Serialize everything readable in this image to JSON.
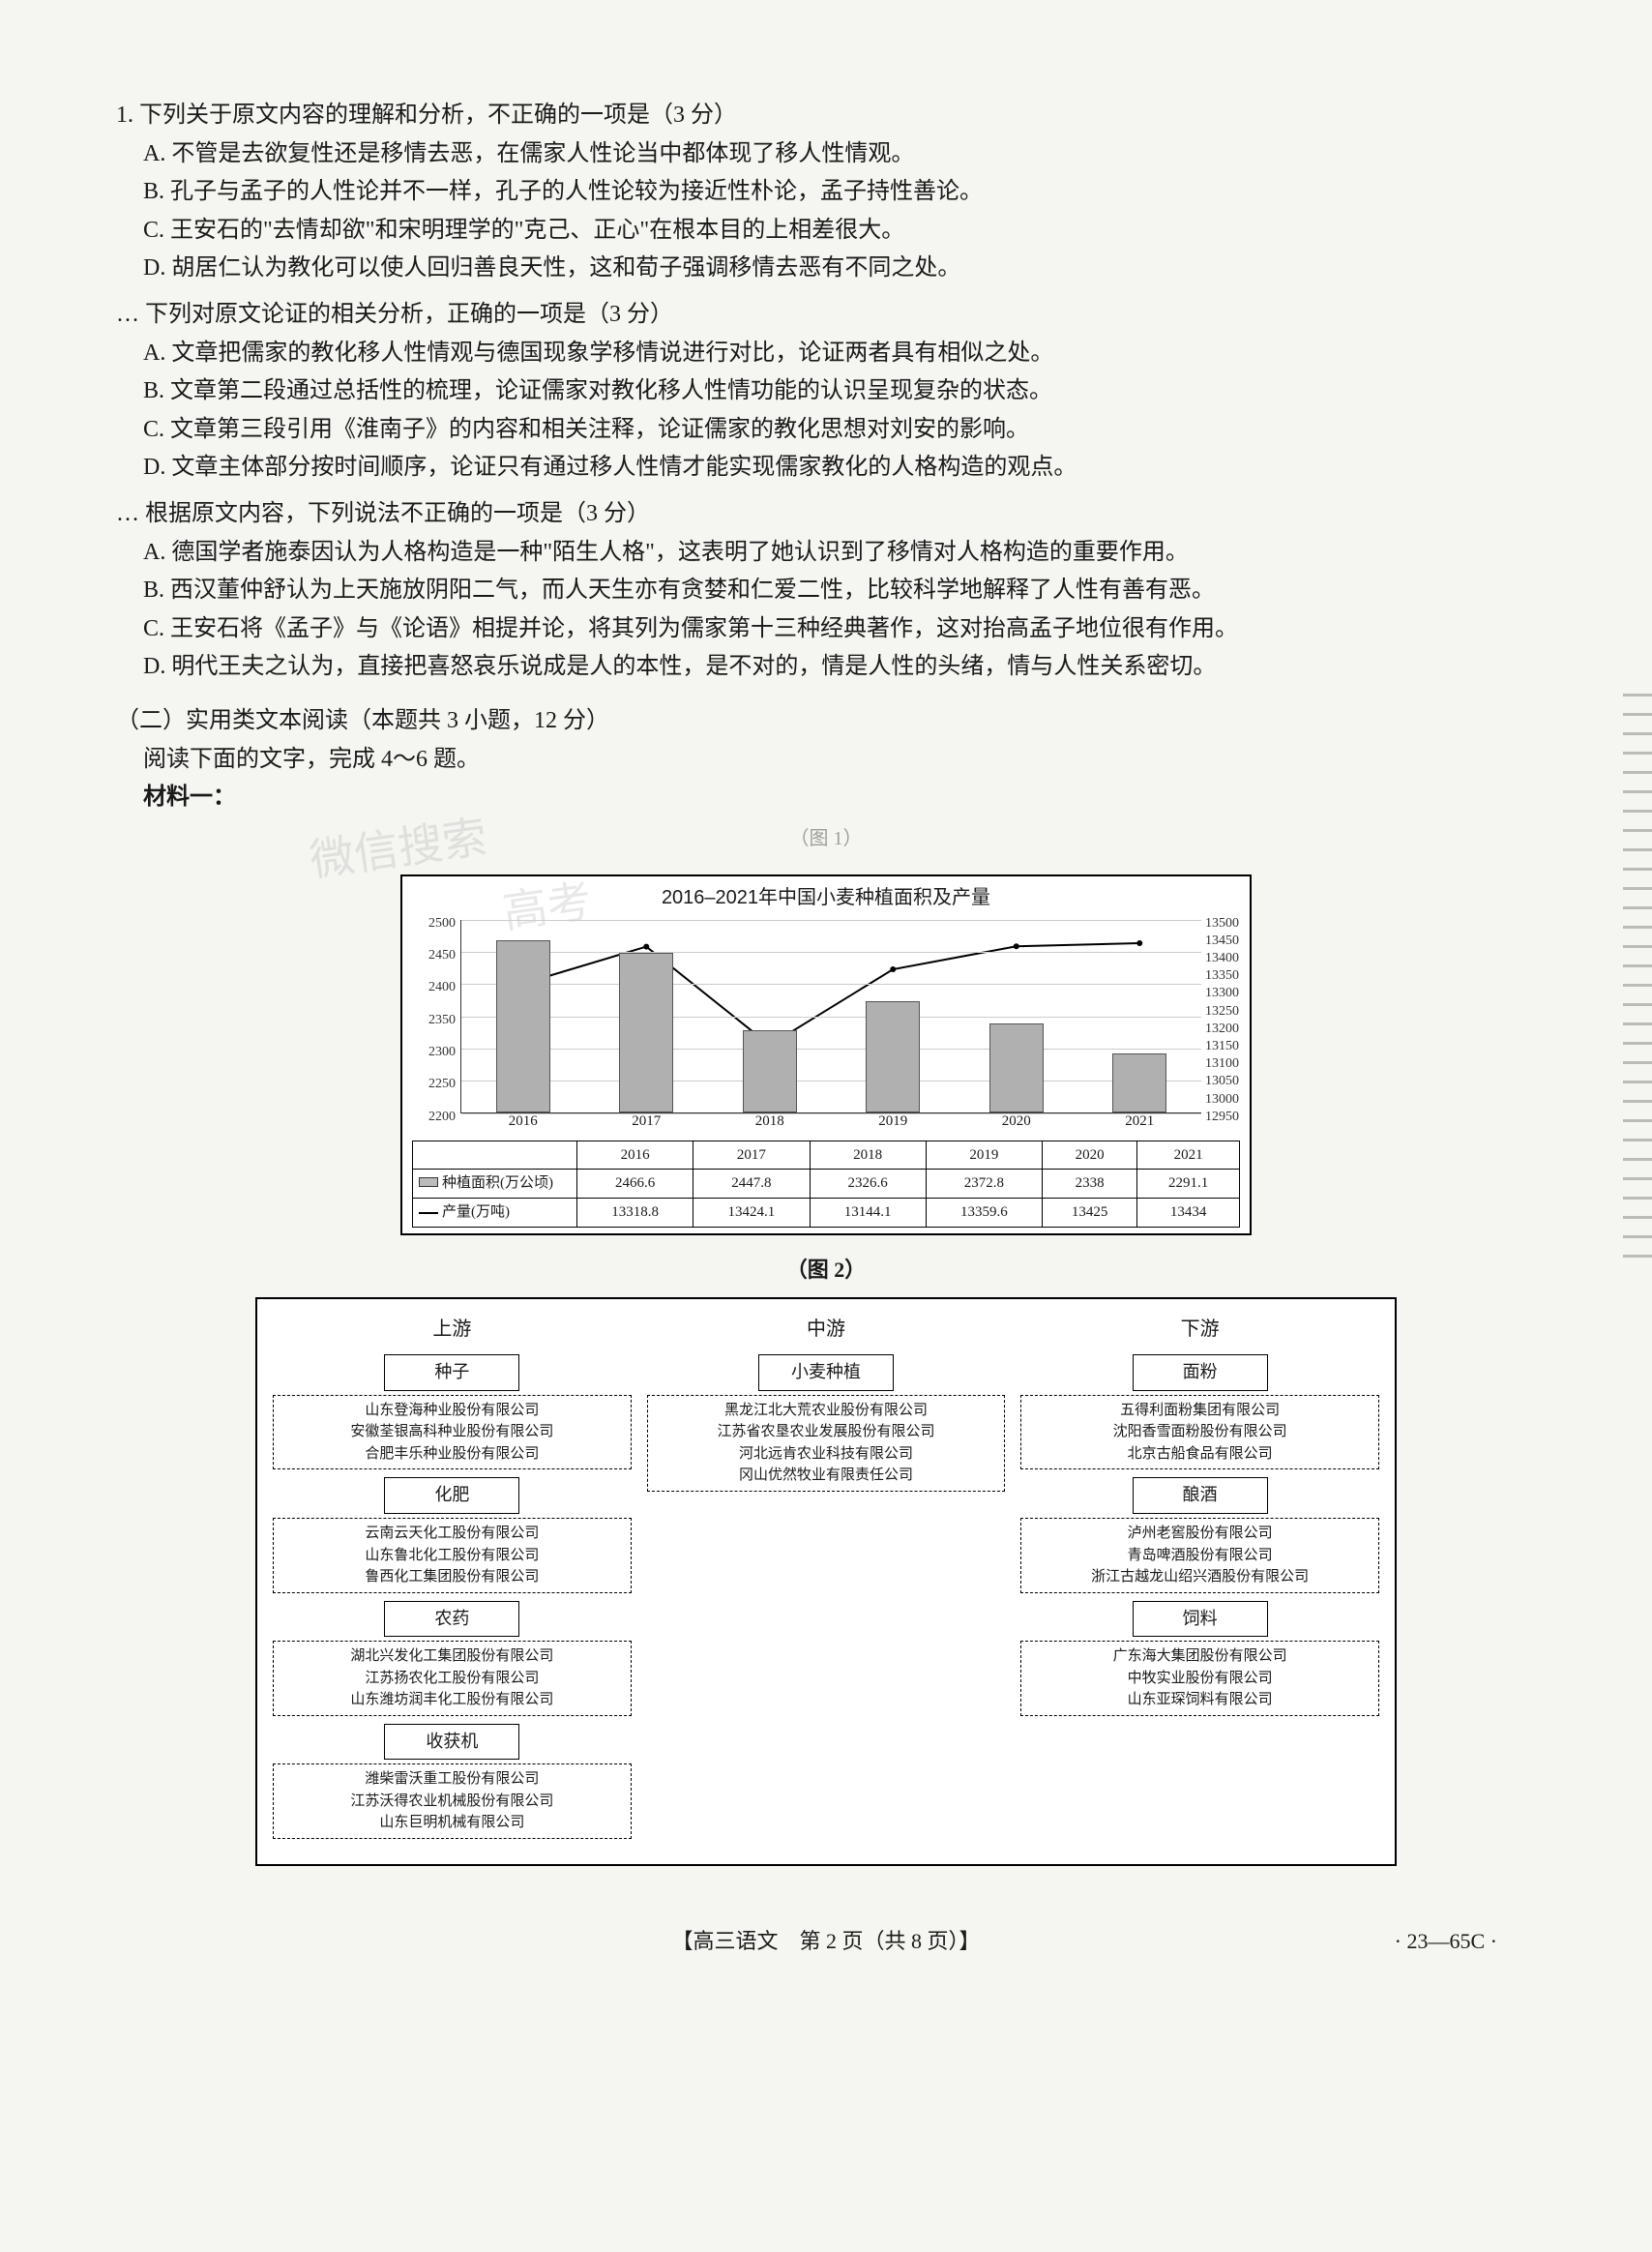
{
  "q1": {
    "stem": "1. 下列关于原文内容的理解和分析，不正确的一项是（3 分）",
    "A": "A. 不管是去欲复性还是移情去恶，在儒家人性论当中都体现了移人性情观。",
    "B": "B. 孔子与孟子的人性论并不一样，孔子的人性论较为接近性朴论，孟子持性善论。",
    "C": "C. 王安石的\"去情却欲\"和宋明理学的\"克己、正心\"在根本目的上相差很大。",
    "D": "D. 胡居仁认为教化可以使人回归善良天性，这和荀子强调移情去恶有不同之处。"
  },
  "q2": {
    "stem": "… 下列对原文论证的相关分析，正确的一项是（3 分）",
    "A": "A. 文章把儒家的教化移人性情观与德国现象学移情说进行对比，论证两者具有相似之处。",
    "B": "B. 文章第二段通过总括性的梳理，论证儒家对教化移人性情功能的认识呈现复杂的状态。",
    "C": "C. 文章第三段引用《淮南子》的内容和相关注释，论证儒家的教化思想对刘安的影响。",
    "D": "D. 文章主体部分按时间顺序，论证只有通过移人性情才能实现儒家教化的人格构造的观点。"
  },
  "q3": {
    "stem": "… 根据原文内容，下列说法不正确的一项是（3 分）",
    "A": "A. 德国学者施泰因认为人格构造是一种\"陌生人格\"，这表明了她认识到了移情对人格构造的重要作用。",
    "B": "B. 西汉董仲舒认为上天施放阴阳二气，而人天生亦有贪婪和仁爱二性，比较科学地解释了人性有善有恶。",
    "C": "C. 王安石将《孟子》与《论语》相提并论，将其列为儒家第十三种经典著作，这对抬高孟子地位很有作用。",
    "D": "D. 明代王夫之认为，直接把喜怒哀乐说成是人的本性，是不对的，情是人性的头绪，情与人性关系密切。"
  },
  "section2": {
    "title": "（二）实用类文本阅读（本题共 3 小题，12 分）",
    "instruction": "阅读下面的文字，完成 4～6 题。",
    "material_label": "材料一：",
    "fig1_label": "（图 1）",
    "fig2_label": "（图 2）"
  },
  "chart": {
    "title": "2016–2021年中国小麦种植面积及产量",
    "type": "bar+line",
    "years": [
      "2016",
      "2017",
      "2018",
      "2019",
      "2020",
      "2021"
    ],
    "area_label": "种植面积(万公顷)",
    "yield_label": "产量(万吨)",
    "area_values": [
      2466.6,
      2447.8,
      2326.6,
      2372.8,
      2338,
      2291.1
    ],
    "yield_values": [
      13318.8,
      13424.1,
      13144.1,
      13359.6,
      13425,
      13434
    ],
    "y_left_ticks": [
      "2500",
      "2450",
      "2400",
      "2350",
      "2300",
      "2250",
      "2200"
    ],
    "y_left_range": [
      2200,
      2500
    ],
    "y_right_ticks": [
      "13500",
      "13450",
      "13400",
      "13350",
      "13300",
      "13250",
      "13200",
      "13150",
      "13100",
      "13050",
      "13000",
      "12950"
    ],
    "y_right_range": [
      12950,
      13500
    ],
    "bar_color": "#b0b0b0",
    "line_color": "#000000",
    "grid_color": "#cccccc",
    "background_color": "#ffffff",
    "bar_width_pct": 9
  },
  "diagram": {
    "columns": {
      "upstream": {
        "header": "上游",
        "groups": [
          {
            "title": "种子",
            "companies": [
              "山东登海种业股份有限公司",
              "安徽荃银高科种业股份有限公司",
              "合肥丰乐种业股份有限公司"
            ]
          },
          {
            "title": "化肥",
            "companies": [
              "云南云天化工股份有限公司",
              "山东鲁北化工股份有限公司",
              "鲁西化工集团股份有限公司"
            ]
          },
          {
            "title": "农药",
            "companies": [
              "湖北兴发化工集团股份有限公司",
              "江苏扬农化工股份有限公司",
              "山东潍坊润丰化工股份有限公司"
            ]
          },
          {
            "title": "收获机",
            "companies": [
              "潍柴雷沃重工股份有限公司",
              "江苏沃得农业机械股份有限公司",
              "山东巨明机械有限公司"
            ]
          }
        ]
      },
      "midstream": {
        "header": "中游",
        "groups": [
          {
            "title": "小麦种植",
            "companies": [
              "黑龙江北大荒农业股份有限公司",
              "江苏省农垦农业发展股份有限公司",
              "河北远肯农业科技有限公司",
              "冈山优然牧业有限责任公司"
            ]
          }
        ]
      },
      "downstream": {
        "header": "下游",
        "groups": [
          {
            "title": "面粉",
            "companies": [
              "五得利面粉集团有限公司",
              "沈阳香雪面粉股份有限公司",
              "北京古船食品有限公司"
            ]
          },
          {
            "title": "酿酒",
            "companies": [
              "泸州老窖股份有限公司",
              "青岛啤酒股份有限公司",
              "浙江古越龙山绍兴酒股份有限公司"
            ]
          },
          {
            "title": "饲料",
            "companies": [
              "广东海大集团股份有限公司",
              "中牧实业股份有限公司",
              "山东亚琛饲料有限公司"
            ]
          }
        ]
      }
    }
  },
  "footer": {
    "center": "【高三语文　第 2 页（共 8 页）】",
    "right": "· 23—65C ·"
  },
  "watermark1": "微信搜索",
  "watermark2": "高考"
}
